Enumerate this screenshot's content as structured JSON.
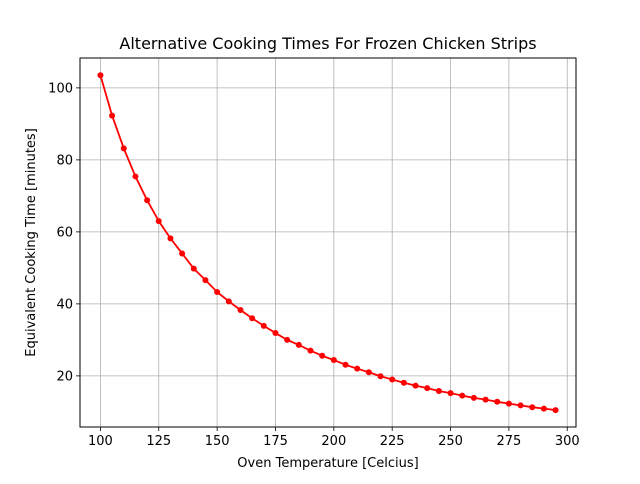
{
  "chart_data": {
    "type": "line",
    "title": "Alternative Cooking Times For Frozen Chicken Strips",
    "xlabel": "Oven Temperature [Celcius]",
    "ylabel": "Equivalent Cooking Time [minutes]",
    "xlim": [
      91.25,
      303.75
    ],
    "ylim": [
      5.8,
      108.3
    ],
    "xticks": [
      100,
      125,
      150,
      175,
      200,
      225,
      250,
      275,
      300
    ],
    "yticks": [
      20,
      40,
      60,
      80,
      100
    ],
    "grid": true,
    "series": [
      {
        "color": "#ff0000",
        "marker": "circle",
        "x": [
          100,
          105,
          110,
          115,
          120,
          125,
          130,
          135,
          140,
          145,
          150,
          155,
          160,
          165,
          170,
          175,
          180,
          185,
          190,
          195,
          200,
          205,
          210,
          215,
          220,
          225,
          230,
          235,
          240,
          245,
          250,
          255,
          260,
          265,
          270,
          275,
          280,
          285,
          290,
          295
        ],
        "y": [
          103.5,
          92.3,
          83.2,
          75.4,
          68.8,
          63.0,
          58.2,
          54.0,
          49.8,
          46.6,
          43.3,
          40.7,
          38.3,
          36.0,
          33.9,
          31.9,
          30.0,
          28.6,
          27.0,
          25.6,
          24.4,
          23.1,
          22.0,
          21.0,
          19.9,
          19.0,
          18.1,
          17.3,
          16.6,
          15.8,
          15.2,
          14.5,
          13.9,
          13.4,
          12.8,
          12.3,
          11.8,
          11.3,
          10.9,
          10.5
        ]
      }
    ]
  }
}
